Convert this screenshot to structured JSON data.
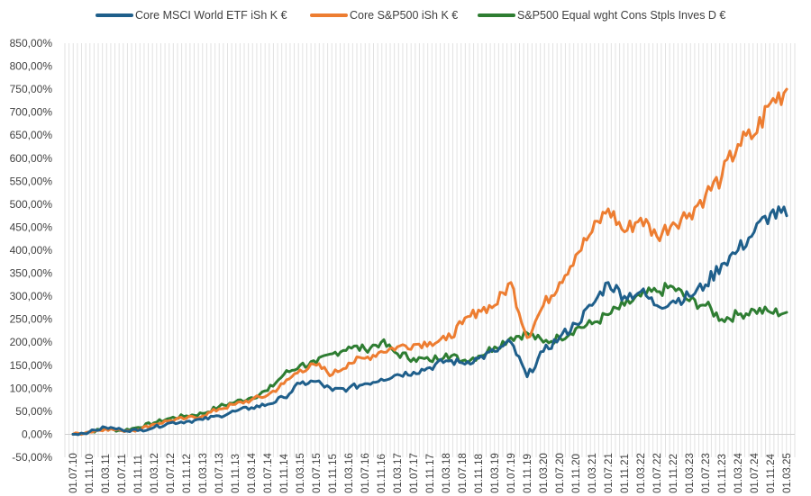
{
  "chart_data": {
    "type": "line",
    "title": "",
    "xlabel": "",
    "ylabel": "",
    "ylim": [
      -50,
      850
    ],
    "yticks": [
      -50,
      0,
      50,
      100,
      150,
      200,
      250,
      300,
      350,
      400,
      450,
      500,
      550,
      600,
      650,
      700,
      750,
      800,
      850
    ],
    "ytick_labels": [
      "-50,00%",
      "0,00%",
      "50,00%",
      "100,00%",
      "150,00%",
      "200,00%",
      "250,00%",
      "300,00%",
      "350,00%",
      "400,00%",
      "450,00%",
      "500,00%",
      "550,00%",
      "600,00%",
      "650,00%",
      "700,00%",
      "750,00%",
      "800,00%",
      "850,00%"
    ],
    "grid": "vertical",
    "legend_position": "top",
    "x_tick_labels": [
      "01.07.10",
      "01.11.10",
      "01.03.11",
      "01.07.11",
      "01.11.11",
      "01.03.12",
      "01.07.12",
      "01.11.12",
      "01.03.13",
      "01.07.13",
      "01.11.13",
      "01.03.14",
      "01.07.14",
      "01.11.14",
      "01.03.15",
      "01.07.15",
      "01.11.15",
      "01.03.16",
      "01.07.16",
      "01.11.16",
      "01.03.17",
      "01.07.17",
      "01.11.17",
      "01.03.18",
      "01.07.18",
      "01.11.18",
      "01.03.19",
      "01.07.19",
      "01.11.19",
      "01.03.20",
      "01.07.20",
      "01.11.20",
      "01.03.21",
      "01.07.21",
      "01.11.21",
      "01.03.22",
      "01.07.22",
      "01.11.22",
      "01.03.23",
      "01.07.23",
      "01.11.23",
      "01.03.24",
      "01.07.24",
      "01.11.24",
      "01.03.25"
    ],
    "series": [
      {
        "name": "Core MSCI World ETF iSh K €",
        "color": "#1f5f8b",
        "values": [
          0,
          5,
          15,
          10,
          8,
          15,
          25,
          28,
          32,
          40,
          50,
          58,
          65,
          80,
          110,
          115,
          95,
          100,
          110,
          120,
          130,
          135,
          145,
          160,
          155,
          165,
          180,
          200,
          125,
          180,
          210,
          240,
          280,
          330,
          300,
          310,
          280,
          290,
          300,
          325,
          370,
          400,
          440,
          480,
          475
        ]
      },
      {
        "name": "Core S&P500 iSh K €",
        "color": "#ed7d31",
        "values": [
          0,
          5,
          12,
          8,
          10,
          22,
          30,
          35,
          40,
          55,
          65,
          75,
          85,
          110,
          140,
          150,
          130,
          155,
          165,
          180,
          190,
          195,
          200,
          205,
          240,
          270,
          280,
          330,
          210,
          280,
          330,
          390,
          440,
          490,
          440,
          470,
          430,
          460,
          480,
          520,
          560,
          630,
          650,
          720,
          750
        ]
      },
      {
        "name": "S&P500 Equal wght Cons Stpls Inves D €",
        "color": "#2e7d32",
        "values": [
          0,
          5,
          12,
          8,
          15,
          25,
          35,
          40,
          45,
          60,
          70,
          80,
          95,
          130,
          150,
          155,
          175,
          190,
          185,
          200,
          175,
          165,
          160,
          175,
          160,
          170,
          190,
          210,
          220,
          200,
          210,
          230,
          240,
          260,
          280,
          300,
          310,
          320,
          290,
          280,
          250,
          260,
          270,
          265,
          265
        ]
      }
    ]
  }
}
